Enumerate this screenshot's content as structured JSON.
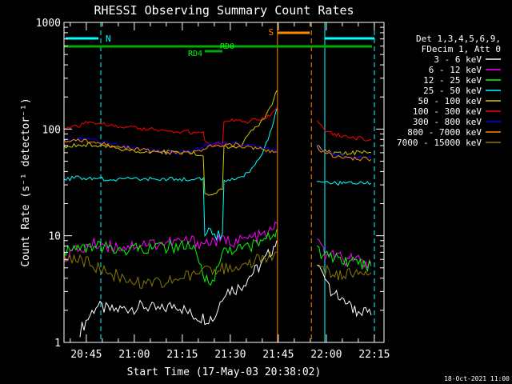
{
  "chart_data": {
    "type": "line",
    "title": "RHESSI Observing Summary Count Rates",
    "xlabel": "Start Time (17-May-03 20:38:02)",
    "ylabel": "Count Rate (s⁻¹ detector⁻¹)",
    "yscale": "log",
    "ylim": [
      1,
      1000
    ],
    "xlim_minutes_after_start": [
      0,
      100
    ],
    "y_tick_labels": [
      "1",
      "10",
      "100",
      "1000"
    ],
    "x_ticks": [
      {
        "label": "20:45",
        "t": 6.97
      },
      {
        "label": "21:00",
        "t": 21.97
      },
      {
        "label": "21:15",
        "t": 36.97
      },
      {
        "label": "21:30",
        "t": 51.97
      },
      {
        "label": "21:45",
        "t": 66.97
      },
      {
        "label": "22:00",
        "t": 81.97
      },
      {
        "label": "22:15",
        "t": 96.97
      }
    ],
    "legend_header": [
      "Det 1,3,4,5,6,9,",
      "FDecim 1, Att 0"
    ],
    "series": [
      {
        "name": "3 - 6 keV",
        "color": "#ffffff",
        "points": [
          [
            5,
            1.3
          ],
          [
            10,
            2.2
          ],
          [
            15,
            2.0
          ],
          [
            20,
            2.1
          ],
          [
            25,
            2.2
          ],
          [
            30,
            2.0
          ],
          [
            35,
            2.3
          ],
          [
            40,
            1.8
          ],
          [
            44,
            1.7
          ],
          [
            47,
            1.7
          ],
          [
            50,
            3.0
          ],
          [
            55,
            3.3
          ],
          [
            58,
            4.2
          ],
          [
            62,
            5.5
          ],
          [
            65,
            7.5
          ],
          [
            66.5,
            9.0
          ]
        ],
        "segment2": [
          [
            79,
            6.0
          ],
          [
            81,
            4.0
          ],
          [
            84,
            3.0
          ],
          [
            88,
            2.2
          ],
          [
            92,
            2.0
          ],
          [
            96,
            1.8
          ]
        ]
      },
      {
        "name": "6 - 12 keV",
        "color": "#ff00ff",
        "points": [
          [
            0,
            6.5
          ],
          [
            5,
            7.5
          ],
          [
            10,
            8.5
          ],
          [
            15,
            8.0
          ],
          [
            20,
            8.0
          ],
          [
            25,
            8.5
          ],
          [
            30,
            8.5
          ],
          [
            35,
            8.8
          ],
          [
            40,
            9.0
          ],
          [
            44,
            8.5
          ],
          [
            47,
            9.0
          ],
          [
            50,
            9.0
          ],
          [
            55,
            9.0
          ],
          [
            58,
            9.5
          ],
          [
            62,
            10.0
          ],
          [
            65,
            11.0
          ],
          [
            66.5,
            13.0
          ]
        ],
        "segment2": [
          [
            79,
            9.0
          ],
          [
            81,
            7.0
          ],
          [
            84,
            6.5
          ],
          [
            88,
            6.0
          ],
          [
            92,
            6.0
          ],
          [
            96,
            5.5
          ]
        ]
      },
      {
        "name": "12 - 25 keV",
        "color": "#00ff00",
        "points": [
          [
            0,
            7.5
          ],
          [
            5,
            7.5
          ],
          [
            10,
            8.0
          ],
          [
            15,
            7.5
          ],
          [
            20,
            7.5
          ],
          [
            25,
            7.8
          ],
          [
            30,
            7.8
          ],
          [
            35,
            8.0
          ],
          [
            40,
            8.0
          ],
          [
            44,
            4.0
          ],
          [
            47,
            4.0
          ],
          [
            50,
            7.5
          ],
          [
            55,
            7.5
          ],
          [
            58,
            8.0
          ],
          [
            62,
            9.0
          ],
          [
            65,
            10.0
          ],
          [
            66.5,
            11.5
          ]
        ],
        "segment2": [
          [
            79,
            8.0
          ],
          [
            81,
            6.5
          ],
          [
            84,
            6.0
          ],
          [
            88,
            6.0
          ],
          [
            92,
            5.5
          ],
          [
            96,
            5.2
          ]
        ]
      },
      {
        "name": "25 - 50 keV",
        "color": "#00ffff",
        "points": [
          [
            0,
            34
          ],
          [
            5,
            35
          ],
          [
            10,
            34
          ],
          [
            15,
            34
          ],
          [
            20,
            34
          ],
          [
            25,
            34
          ],
          [
            30,
            34
          ],
          [
            35,
            34
          ],
          [
            40,
            34
          ],
          [
            43.5,
            34
          ],
          [
            44,
            10.5
          ],
          [
            47,
            10.5
          ],
          [
            49.5,
            10.5
          ],
          [
            50,
            33
          ],
          [
            55,
            34
          ],
          [
            58,
            40
          ],
          [
            62,
            60
          ],
          [
            65,
            100
          ],
          [
            66.5,
            155
          ]
        ],
        "segment2": [
          [
            79,
            32
          ],
          [
            81,
            32
          ],
          [
            84,
            31
          ],
          [
            88,
            31
          ],
          [
            92,
            31
          ],
          [
            96,
            31
          ]
        ]
      },
      {
        "name": "50 - 100 keV",
        "color": "#cccc00",
        "points": [
          [
            0,
            69
          ],
          [
            5,
            72
          ],
          [
            10,
            71
          ],
          [
            15,
            67
          ],
          [
            20,
            64
          ],
          [
            25,
            62
          ],
          [
            30,
            62
          ],
          [
            35,
            60
          ],
          [
            40,
            60
          ],
          [
            43.5,
            58
          ],
          [
            44,
            25
          ],
          [
            47,
            25
          ],
          [
            49.5,
            27
          ],
          [
            50,
            68
          ],
          [
            55,
            70
          ],
          [
            58,
            90
          ],
          [
            62,
            120
          ],
          [
            65,
            170
          ],
          [
            66.5,
            230
          ]
        ],
        "segment2": [
          [
            79,
            72
          ],
          [
            81,
            64
          ],
          [
            84,
            60
          ],
          [
            88,
            60
          ],
          [
            92,
            60
          ],
          [
            96,
            60
          ]
        ]
      },
      {
        "name": "100 - 300 keV",
        "color": "#ff0000",
        "points": [
          [
            0,
            102
          ],
          [
            5,
            108
          ],
          [
            8,
            120
          ],
          [
            10,
            115
          ],
          [
            15,
            108
          ],
          [
            20,
            105
          ],
          [
            25,
            100
          ],
          [
            30,
            98
          ],
          [
            35,
            96
          ],
          [
            40,
            94
          ],
          [
            43.5,
            95
          ],
          [
            44,
            75
          ],
          [
            47,
            73
          ],
          [
            49.5,
            72
          ],
          [
            50,
            118
          ],
          [
            55,
            120
          ],
          [
            58,
            118
          ],
          [
            62,
            125
          ],
          [
            65,
            140
          ],
          [
            66.5,
            160
          ]
        ],
        "segment2": [
          [
            79,
            120
          ],
          [
            81,
            100
          ],
          [
            84,
            90
          ],
          [
            88,
            85
          ],
          [
            92,
            82
          ],
          [
            96,
            80
          ]
        ]
      },
      {
        "name": "300 - 800 keV",
        "color": "#0000ff",
        "points": [
          [
            0,
            79
          ],
          [
            5,
            80
          ],
          [
            10,
            78
          ],
          [
            15,
            72
          ],
          [
            20,
            68
          ],
          [
            25,
            64
          ],
          [
            30,
            62
          ],
          [
            35,
            61
          ],
          [
            40,
            63
          ],
          [
            43.5,
            66
          ],
          [
            44,
            70
          ],
          [
            47,
            72
          ],
          [
            50,
            74
          ],
          [
            53,
            75
          ],
          [
            55,
            72
          ],
          [
            58,
            70
          ],
          [
            62,
            67
          ],
          [
            65,
            65
          ],
          [
            66.5,
            64
          ]
        ],
        "segment2": [
          [
            79,
            70
          ],
          [
            81,
            63
          ],
          [
            84,
            58
          ],
          [
            88,
            56
          ],
          [
            92,
            55
          ],
          [
            96,
            54
          ]
        ]
      },
      {
        "name": "800 - 7000 keV",
        "color": "#ff8800",
        "points": [
          [
            0,
            77
          ],
          [
            5,
            79
          ],
          [
            10,
            76
          ],
          [
            15,
            70
          ],
          [
            20,
            66
          ],
          [
            25,
            63
          ],
          [
            30,
            61
          ],
          [
            35,
            60
          ],
          [
            40,
            61
          ],
          [
            43.5,
            63
          ],
          [
            44,
            67
          ],
          [
            47,
            70
          ],
          [
            50,
            72
          ],
          [
            53,
            72
          ],
          [
            55,
            70
          ],
          [
            58,
            68
          ],
          [
            62,
            65
          ],
          [
            65,
            62
          ],
          [
            66.5,
            61
          ]
        ],
        "segment2": [
          [
            79,
            68
          ],
          [
            81,
            61
          ],
          [
            84,
            56
          ],
          [
            88,
            54
          ],
          [
            92,
            53
          ],
          [
            96,
            52
          ]
        ]
      },
      {
        "name": "7000 - 15000 keV",
        "color": "#887700",
        "points": [
          [
            0,
            6.0
          ],
          [
            5,
            6.0
          ],
          [
            10,
            5.2
          ],
          [
            15,
            4.5
          ],
          [
            20,
            3.8
          ],
          [
            25,
            3.5
          ],
          [
            30,
            3.6
          ],
          [
            35,
            3.9
          ],
          [
            40,
            4.3
          ],
          [
            44,
            4.8
          ],
          [
            47,
            5.0
          ],
          [
            50,
            5.0
          ],
          [
            55,
            5.2
          ],
          [
            58,
            5.6
          ],
          [
            62,
            6.2
          ],
          [
            65,
            6.8
          ],
          [
            66.5,
            7.0
          ]
        ],
        "segment2": [
          [
            79,
            5.2
          ],
          [
            81,
            4.8
          ],
          [
            84,
            4.5
          ],
          [
            88,
            4.3
          ],
          [
            92,
            4.5
          ],
          [
            96,
            4.5
          ]
        ]
      }
    ],
    "annotations": {
      "night_label": "N",
      "saa_label": "S",
      "rd0_label": "RD0",
      "rd4_label": "RD4",
      "night_intervals": [
        [
          0,
          11.5
        ],
        [
          81.5,
          97
        ]
      ],
      "saa_interval": [
        66.7,
        77.3
      ],
      "rd0_interval": [
        0,
        100
      ],
      "rd4_interval": [
        44,
        49.5
      ]
    },
    "footer_date": "18-Oct-2021 11:00"
  }
}
